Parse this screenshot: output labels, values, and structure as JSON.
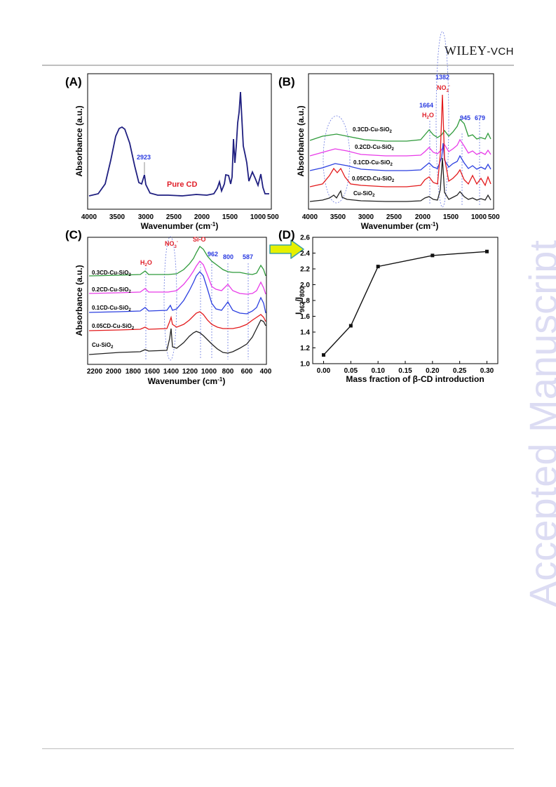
{
  "header": {
    "publisher_main": "WILEY",
    "publisher_suffix": "-VCH"
  },
  "watermark": "Accepted Manuscript",
  "colors": {
    "navy": "#1f1f80",
    "black": "#222222",
    "red": "#e31a1c",
    "blue": "#2b3fe0",
    "magenta": "#e83be8",
    "green": "#2e9a3a",
    "arrow": "#e6f000",
    "annotation_blue": "#2a3be0",
    "annotation_red": "#e0202a"
  },
  "icons": {
    "arrow": "right-arrow-icon"
  },
  "panels": {
    "A": {
      "letter": "(A)",
      "ylabel": "Absorbance (a.u.)",
      "xlabel_main": "Wavenumber (cm",
      "xlabel_sup": "-1",
      "xlabel_end": ")",
      "xticks": [
        "4000",
        "3500",
        "3000",
        "2500",
        "2000",
        "1500",
        "1000",
        "500"
      ],
      "annotations": {
        "peak": "2923",
        "sample": "Pure CD"
      }
    },
    "B": {
      "letter": "(B)",
      "ylabel": "Absorbance (a.u.)",
      "xlabel_main": "Wavenumber (cm",
      "xlabel_sup": "-1",
      "xlabel_end": ")",
      "xticks": [
        "4000",
        "3500",
        "3000",
        "2500",
        "2000",
        "1500",
        "1000",
        "500"
      ],
      "annotations": {
        "p1382": "1382",
        "no3": "NO",
        "no3_sub": "3",
        "no3_sup": "-",
        "p1664": "1664",
        "h2o_a": "H",
        "h2o_sub": "2",
        "h2o_b": "O",
        "p945": "945",
        "p679": "679"
      },
      "series": [
        {
          "main": "0.3CD-Cu-SiO",
          "sub": "2"
        },
        {
          "main": "0.2CD-Cu-SiO",
          "sub": "2"
        },
        {
          "main": "0.1CD-Cu-SiO",
          "sub": "2"
        },
        {
          "main": "0.05CD-Cu-SiO",
          "sub": "2"
        },
        {
          "main": "Cu-SiO",
          "sub": "2"
        }
      ]
    },
    "C": {
      "letter": "(C)",
      "ylabel": "Absorbance (a.u.)",
      "xlabel_main": "Wavenumber (cm",
      "xlabel_sup": "-1",
      "xlabel_end": ")",
      "xticks": [
        "2200",
        "2000",
        "1800",
        "1600",
        "1400",
        "1200",
        "1000",
        "800",
        "600",
        "400"
      ],
      "annotations": {
        "h2o_a": "H",
        "h2o_sub": "2",
        "h2o_b": "O",
        "no3": "NO",
        "no3_sub": "3",
        "no3_sup": "-",
        "sio": "Si-O",
        "p962": "962",
        "p800": "800",
        "p587": "587"
      },
      "series": [
        {
          "main": "0.3CD-Cu-SiO",
          "sub": "2"
        },
        {
          "main": "0.2CD-Cu-SiO",
          "sub": "2"
        },
        {
          "main": "0.1CD-Cu-SiO",
          "sub": "2"
        },
        {
          "main": "0.05CD-Cu-SiO",
          "sub": "2"
        },
        {
          "main": "Cu-SiO",
          "sub": "2"
        }
      ]
    },
    "D": {
      "letter": "(D)",
      "ylabel_a": "I",
      "ylabel_sub1": "962",
      "ylabel_b": "/I",
      "ylabel_sub2": "800",
      "xlabel": "Mass fraction of β-CD introduction"
    }
  },
  "chart_data": [
    {
      "panel": "D",
      "type": "line",
      "x": [
        0.0,
        0.05,
        0.1,
        0.2,
        0.3
      ],
      "y": [
        1.11,
        1.48,
        2.23,
        2.37,
        2.42
      ],
      "xlim": [
        -0.02,
        0.32
      ],
      "ylim": [
        1.0,
        2.6
      ],
      "xticks": [
        "0.00",
        "0.05",
        "0.10",
        "0.15",
        "0.20",
        "0.25",
        "0.30"
      ],
      "yticks": [
        "1.0",
        "1.2",
        "1.4",
        "1.6",
        "1.8",
        "2.0",
        "2.2",
        "2.4",
        "2.6"
      ],
      "xlabel": "Mass fraction of β-CD introduction",
      "ylabel": "I962/I800",
      "marker": "square"
    }
  ]
}
